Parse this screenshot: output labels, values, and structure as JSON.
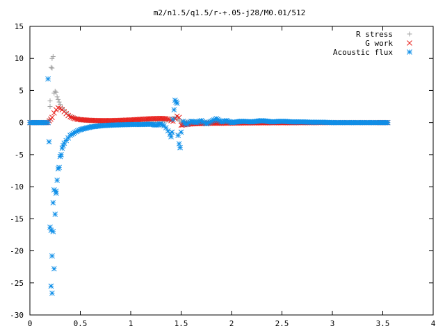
{
  "chart_data": {
    "type": "scatter",
    "title": "m2/n1.5/q1.5/r-+.05-j28/M0.01/512",
    "xlabel": "",
    "ylabel": "",
    "xlim": [
      0,
      4
    ],
    "ylim": [
      -30,
      15
    ],
    "xticks": [
      0,
      0.5,
      1,
      1.5,
      2,
      2.5,
      3,
      3.5,
      4
    ],
    "xtick_labels": [
      "0",
      "0.5",
      "1",
      "1.5",
      "2",
      "2.5",
      "3",
      "3.5",
      "4"
    ],
    "yticks": [
      -30,
      -25,
      -20,
      -15,
      -10,
      -5,
      0,
      5,
      10,
      15
    ],
    "ytick_labels": [
      "-30",
      "-25",
      "-20",
      "-15",
      "-10",
      "-5",
      "0",
      "5",
      "10",
      "15"
    ],
    "grid": false,
    "legend_position": "top-right",
    "series": [
      {
        "name": "R stress",
        "marker": "plus",
        "color": "#a0a0a0",
        "points": [
          [
            0.0,
            0.0
          ],
          [
            0.05,
            0.0
          ],
          [
            0.1,
            0.0
          ],
          [
            0.15,
            0.0
          ],
          [
            0.18,
            0.0
          ],
          [
            0.19,
            0.5
          ],
          [
            0.2,
            2.5
          ],
          [
            0.2,
            3.4
          ],
          [
            0.21,
            8.6
          ],
          [
            0.22,
            10.0
          ],
          [
            0.22,
            8.5
          ],
          [
            0.23,
            10.3
          ],
          [
            0.24,
            4.6
          ],
          [
            0.25,
            4.9
          ],
          [
            0.26,
            4.7
          ],
          [
            0.27,
            4.0
          ],
          [
            0.28,
            3.6
          ],
          [
            0.29,
            3.2
          ],
          [
            0.3,
            2.8
          ],
          [
            0.32,
            2.4
          ],
          [
            0.34,
            2.0
          ],
          [
            0.36,
            1.6
          ],
          [
            0.38,
            1.3
          ],
          [
            0.4,
            1.0
          ],
          [
            0.43,
            0.8
          ],
          [
            0.46,
            0.6
          ],
          [
            0.5,
            0.45
          ],
          [
            0.55,
            0.35
          ],
          [
            0.6,
            0.3
          ],
          [
            0.7,
            0.25
          ],
          [
            0.8,
            0.2
          ],
          [
            0.9,
            0.2
          ],
          [
            1.0,
            0.22
          ],
          [
            1.1,
            0.25
          ],
          [
            1.2,
            0.3
          ],
          [
            1.3,
            0.35
          ],
          [
            1.38,
            0.4
          ],
          [
            1.42,
            0.6
          ],
          [
            1.45,
            0.8
          ],
          [
            1.47,
            0.5
          ],
          [
            1.5,
            0.1
          ],
          [
            1.6,
            0.05
          ],
          [
            1.8,
            0.05
          ],
          [
            2.0,
            0.05
          ],
          [
            2.2,
            0.05
          ],
          [
            2.5,
            0.05
          ],
          [
            2.8,
            0.03
          ],
          [
            3.0,
            0.02
          ],
          [
            3.2,
            0.02
          ],
          [
            3.4,
            0.01
          ],
          [
            3.55,
            0.0
          ]
        ]
      },
      {
        "name": "G work",
        "marker": "cross",
        "color": "#e8201c",
        "points": [
          [
            0.0,
            0.0
          ],
          [
            0.1,
            0.0
          ],
          [
            0.18,
            0.0
          ],
          [
            0.22,
            0.8
          ],
          [
            0.24,
            1.5
          ],
          [
            0.26,
            2.0
          ],
          [
            0.28,
            2.3
          ],
          [
            0.3,
            2.2
          ],
          [
            0.32,
            2.0
          ],
          [
            0.34,
            1.7
          ],
          [
            0.36,
            1.4
          ],
          [
            0.38,
            1.1
          ],
          [
            0.4,
            0.9
          ],
          [
            0.43,
            0.7
          ],
          [
            0.46,
            0.55
          ],
          [
            0.5,
            0.45
          ],
          [
            0.55,
            0.4
          ],
          [
            0.6,
            0.35
          ],
          [
            0.65,
            0.32
          ],
          [
            0.7,
            0.3
          ],
          [
            0.75,
            0.3
          ],
          [
            0.8,
            0.3
          ],
          [
            0.85,
            0.32
          ],
          [
            0.9,
            0.35
          ],
          [
            0.95,
            0.38
          ],
          [
            1.0,
            0.4
          ],
          [
            1.05,
            0.45
          ],
          [
            1.1,
            0.5
          ],
          [
            1.15,
            0.55
          ],
          [
            1.2,
            0.6
          ],
          [
            1.25,
            0.62
          ],
          [
            1.3,
            0.65
          ],
          [
            1.35,
            0.6
          ],
          [
            1.38,
            0.5
          ],
          [
            1.4,
            0.3
          ],
          [
            1.42,
            0.2
          ],
          [
            1.44,
            0.6
          ],
          [
            1.46,
            1.0
          ],
          [
            1.48,
            0.8
          ],
          [
            1.5,
            -0.4
          ],
          [
            1.55,
            -0.3
          ],
          [
            1.6,
            -0.2
          ],
          [
            1.7,
            -0.15
          ],
          [
            1.8,
            -0.1
          ],
          [
            1.9,
            -0.1
          ],
          [
            2.0,
            -0.08
          ],
          [
            2.2,
            -0.05
          ],
          [
            2.4,
            -0.03
          ],
          [
            2.6,
            -0.02
          ],
          [
            2.8,
            -0.01
          ],
          [
            2.9,
            0.0
          ],
          [
            3.0,
            0.0
          ],
          [
            3.2,
            0.0
          ],
          [
            3.4,
            0.0
          ],
          [
            3.55,
            0.0
          ]
        ]
      },
      {
        "name": "Acoustic flux",
        "marker": "star",
        "color": "#0f8fe8",
        "points": [
          [
            0.0,
            0.0
          ],
          [
            0.05,
            0.0
          ],
          [
            0.1,
            0.0
          ],
          [
            0.15,
            0.0
          ],
          [
            0.18,
            0.0
          ],
          [
            0.18,
            6.8
          ],
          [
            0.19,
            -3.0
          ],
          [
            0.2,
            -16.3
          ],
          [
            0.21,
            -16.8
          ],
          [
            0.21,
            -25.5
          ],
          [
            0.22,
            -26.6
          ],
          [
            0.22,
            -20.8
          ],
          [
            0.23,
            -17.0
          ],
          [
            0.23,
            -12.5
          ],
          [
            0.24,
            -22.8
          ],
          [
            0.24,
            -10.5
          ],
          [
            0.25,
            -14.3
          ],
          [
            0.26,
            -11.0
          ],
          [
            0.26,
            -10.7
          ],
          [
            0.27,
            -9.0
          ],
          [
            0.28,
            -7.2
          ],
          [
            0.29,
            -7.0
          ],
          [
            0.3,
            -5.3
          ],
          [
            0.31,
            -5.0
          ],
          [
            0.32,
            -4.0
          ],
          [
            0.33,
            -3.6
          ],
          [
            0.34,
            -3.2
          ],
          [
            0.36,
            -2.8
          ],
          [
            0.38,
            -2.4
          ],
          [
            0.4,
            -2.0
          ],
          [
            0.43,
            -1.7
          ],
          [
            0.46,
            -1.4
          ],
          [
            0.5,
            -1.1
          ],
          [
            0.55,
            -0.9
          ],
          [
            0.6,
            -0.7
          ],
          [
            0.65,
            -0.6
          ],
          [
            0.7,
            -0.5
          ],
          [
            0.8,
            -0.4
          ],
          [
            0.9,
            -0.35
          ],
          [
            1.0,
            -0.3
          ],
          [
            1.1,
            -0.3
          ],
          [
            1.2,
            -0.25
          ],
          [
            1.25,
            -0.4
          ],
          [
            1.3,
            -0.2
          ],
          [
            1.33,
            -0.5
          ],
          [
            1.35,
            -0.8
          ],
          [
            1.37,
            -1.3
          ],
          [
            1.39,
            -1.8
          ],
          [
            1.4,
            -2.2
          ],
          [
            1.41,
            -1.5
          ],
          [
            1.42,
            0.5
          ],
          [
            1.43,
            2.0
          ],
          [
            1.44,
            3.5
          ],
          [
            1.45,
            3.2
          ],
          [
            1.46,
            3.0
          ],
          [
            1.47,
            -2.0
          ],
          [
            1.48,
            -3.3
          ],
          [
            1.49,
            -3.9
          ],
          [
            1.5,
            -1.5
          ],
          [
            1.52,
            0.2
          ],
          [
            1.55,
            -0.3
          ],
          [
            1.6,
            0.2
          ],
          [
            1.65,
            0.0
          ],
          [
            1.7,
            0.3
          ],
          [
            1.75,
            -0.2
          ],
          [
            1.8,
            0.2
          ],
          [
            1.85,
            0.6
          ],
          [
            1.9,
            0.1
          ],
          [
            1.95,
            0.3
          ],
          [
            2.0,
            0.0
          ],
          [
            2.1,
            0.2
          ],
          [
            2.2,
            0.1
          ],
          [
            2.3,
            0.3
          ],
          [
            2.4,
            0.1
          ],
          [
            2.5,
            0.2
          ],
          [
            2.6,
            0.1
          ],
          [
            2.7,
            0.1
          ],
          [
            2.8,
            0.05
          ],
          [
            2.9,
            0.05
          ],
          [
            3.0,
            0.0
          ],
          [
            3.1,
            0.0
          ],
          [
            3.2,
            0.0
          ],
          [
            3.3,
            0.0
          ],
          [
            3.4,
            0.0
          ],
          [
            3.5,
            0.0
          ],
          [
            3.55,
            0.0
          ]
        ]
      }
    ]
  }
}
